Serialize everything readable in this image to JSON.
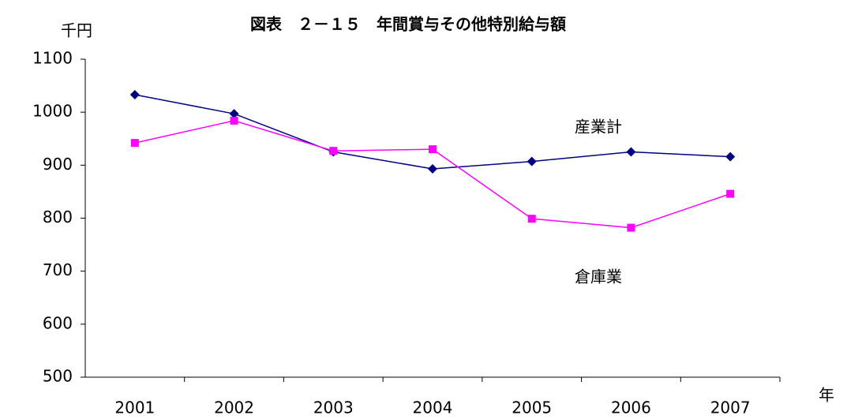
{
  "chart_data": {
    "type": "line",
    "title": "図表　２－１５　年間賞与その他特別給与額",
    "y_axis_label": "千円",
    "x_axis_label": "年",
    "categories": [
      "2001",
      "2002",
      "2003",
      "2004",
      "2005",
      "2006",
      "2007"
    ],
    "series": [
      {
        "name": "産業計",
        "color": "#000080",
        "marker": "diamond",
        "values": [
          1033,
          997,
          925,
          893,
          907,
          925,
          916
        ]
      },
      {
        "name": "倉庫業",
        "color": "#ff00ff",
        "marker": "square",
        "values": [
          942,
          984,
          927,
          930,
          799,
          782,
          846
        ]
      }
    ],
    "ylim": [
      500,
      1100
    ],
    "yticks": [
      500,
      600,
      700,
      800,
      900,
      1000,
      1100
    ],
    "grid": false
  }
}
